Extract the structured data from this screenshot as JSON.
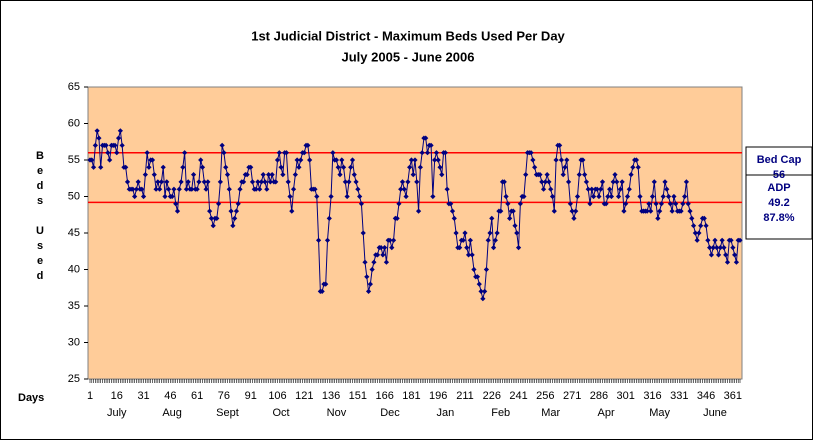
{
  "chart_data": {
    "type": "line",
    "title": "1st Judicial District - Maximum Beds Used Per Day",
    "subtitle": "July 2005 - June 2006",
    "ylabel": "Beds Used",
    "xlabel": "Days",
    "color": "#000080",
    "plot_background": "#ffcc99",
    "xlim": [
      1,
      365
    ],
    "ylim": [
      25,
      65
    ],
    "yticks": [
      25,
      30,
      35,
      40,
      45,
      50,
      55,
      60,
      65
    ],
    "xticks": [
      1,
      16,
      31,
      46,
      61,
      76,
      91,
      106,
      121,
      136,
      151,
      166,
      181,
      196,
      211,
      226,
      241,
      256,
      271,
      286,
      301,
      316,
      331,
      346,
      361
    ],
    "month_labels": [
      {
        "value": 16,
        "label": "July"
      },
      {
        "value": 47,
        "label": "Aug"
      },
      {
        "value": 78,
        "label": "Sept"
      },
      {
        "value": 108,
        "label": "Oct"
      },
      {
        "value": 139,
        "label": "Nov"
      },
      {
        "value": 169,
        "label": "Dec"
      },
      {
        "value": 200,
        "label": "Jan"
      },
      {
        "value": 231,
        "label": "Feb"
      },
      {
        "value": 259,
        "label": "Mar"
      },
      {
        "value": 290,
        "label": "Apr"
      },
      {
        "value": 320,
        "label": "May"
      },
      {
        "value": 351,
        "label": "June"
      }
    ],
    "reference_lines": [
      {
        "name": "Bed Cap",
        "value": 56,
        "color": "#ff0000"
      },
      {
        "name": "ADP",
        "value": 49.2,
        "note": "87.8%",
        "color": "#ff0000"
      }
    ],
    "x": [
      1,
      2,
      3,
      4,
      5,
      6,
      7,
      8,
      9,
      10,
      11,
      12,
      13,
      14,
      15,
      16,
      17,
      18,
      19,
      20,
      21,
      22,
      23,
      24,
      25,
      26,
      27,
      28,
      29,
      30,
      31,
      32,
      33,
      34,
      35,
      36,
      37,
      38,
      39,
      40,
      41,
      42,
      43,
      44,
      45,
      46,
      47,
      48,
      49,
      50,
      51,
      52,
      53,
      54,
      55,
      56,
      57,
      58,
      59,
      60,
      61,
      62,
      63,
      64,
      65,
      66,
      67,
      68,
      69,
      70,
      71,
      72,
      73,
      74,
      75,
      76,
      77,
      78,
      79,
      80,
      81,
      82,
      83,
      84,
      85,
      86,
      87,
      88,
      89,
      90,
      91,
      92,
      93,
      94,
      95,
      96,
      97,
      98,
      99,
      100,
      101,
      102,
      103,
      104,
      105,
      106,
      107,
      108,
      109,
      110,
      111,
      112,
      113,
      114,
      115,
      116,
      117,
      118,
      119,
      120,
      121,
      122,
      123,
      124,
      125,
      126,
      127,
      128,
      129,
      130,
      131,
      132,
      133,
      134,
      135,
      136,
      137,
      138,
      139,
      140,
      141,
      142,
      143,
      144,
      145,
      146,
      147,
      148,
      149,
      150,
      151,
      152,
      153,
      154,
      155,
      156,
      157,
      158,
      159,
      160,
      161,
      162,
      163,
      164,
      165,
      166,
      167,
      168,
      169,
      170,
      171,
      172,
      173,
      174,
      175,
      176,
      177,
      178,
      179,
      180,
      181,
      182,
      183,
      184,
      185,
      186,
      187,
      188,
      189,
      190,
      191,
      192,
      193,
      194,
      195,
      196,
      197,
      198,
      199,
      200,
      201,
      202,
      203,
      204,
      205,
      206,
      207,
      208,
      209,
      210,
      211,
      212,
      213,
      214,
      215,
      216,
      217,
      218,
      219,
      220,
      221,
      222,
      223,
      224,
      225,
      226,
      227,
      228,
      229,
      230,
      231,
      232,
      233,
      234,
      235,
      236,
      237,
      238,
      239,
      240,
      241,
      242,
      243,
      244,
      245,
      246,
      247,
      248,
      249,
      250,
      251,
      252,
      253,
      254,
      255,
      256,
      257,
      258,
      259,
      260,
      261,
      262,
      263,
      264,
      265,
      266,
      267,
      268,
      269,
      270,
      271,
      272,
      273,
      274,
      275,
      276,
      277,
      278,
      279,
      280,
      281,
      282,
      283,
      284,
      285,
      286,
      287,
      288,
      289,
      290,
      291,
      292,
      293,
      294,
      295,
      296,
      297,
      298,
      299,
      300,
      301,
      302,
      303,
      304,
      305,
      306,
      307,
      308,
      309,
      310,
      311,
      312,
      313,
      314,
      315,
      316,
      317,
      318,
      319,
      320,
      321,
      322,
      323,
      324,
      325,
      326,
      327,
      328,
      329,
      330,
      331,
      332,
      333,
      334,
      335,
      336,
      337,
      338,
      339,
      340,
      341,
      342,
      343,
      344,
      345,
      346,
      347,
      348,
      349,
      350,
      351,
      352,
      353,
      354,
      355,
      356,
      357,
      358,
      359,
      360,
      361,
      362,
      363,
      364,
      365
    ],
    "values": [
      55,
      55,
      54,
      57,
      59,
      58,
      54,
      57,
      57,
      57,
      56,
      55,
      57,
      57,
      57,
      56,
      58,
      59,
      57,
      54,
      54,
      52,
      51,
      51,
      51,
      50,
      51,
      52,
      51,
      51,
      50,
      53,
      56,
      54,
      55,
      55,
      53,
      51,
      52,
      51,
      52,
      54,
      50,
      52,
      51,
      50,
      50,
      51,
      49,
      48,
      51,
      52,
      54,
      56,
      51,
      52,
      51,
      51,
      53,
      51,
      51,
      52,
      55,
      54,
      52,
      51,
      52,
      48,
      47,
      46,
      47,
      47,
      49,
      52,
      57,
      56,
      54,
      53,
      51,
      48,
      46,
      47,
      48,
      49,
      51,
      52,
      52,
      53,
      53,
      54,
      54,
      52,
      51,
      51,
      52,
      51,
      52,
      53,
      52,
      51,
      53,
      52,
      53,
      52,
      52,
      55,
      56,
      54,
      53,
      56,
      56,
      52,
      50,
      48,
      51,
      53,
      55,
      54,
      55,
      56,
      56,
      57,
      57,
      55,
      51,
      51,
      51,
      50,
      44,
      37,
      37,
      38,
      38,
      44,
      47,
      50,
      56,
      55,
      55,
      54,
      53,
      55,
      54,
      52,
      50,
      52,
      54,
      55,
      53,
      52,
      51,
      50,
      49,
      45,
      41,
      39,
      37,
      38,
      40,
      41,
      42,
      42,
      43,
      43,
      42,
      43,
      41,
      44,
      44,
      43,
      44,
      47,
      47,
      49,
      51,
      52,
      51,
      50,
      52,
      54,
      55,
      53,
      55,
      52,
      48,
      54,
      56,
      58,
      58,
      56,
      57,
      57,
      50,
      55,
      56,
      55,
      54,
      53,
      56,
      56,
      51,
      49,
      49,
      48,
      47,
      45,
      43,
      43,
      44,
      44,
      45,
      43,
      42,
      44,
      42,
      40,
      39,
      39,
      38,
      37,
      36,
      37,
      40,
      44,
      45,
      47,
      43,
      44,
      45,
      48,
      48,
      52,
      52,
      50,
      49,
      47,
      48,
      48,
      46,
      45,
      43,
      49,
      50,
      50,
      53,
      56,
      56,
      56,
      55,
      54,
      53,
      53,
      53,
      52,
      51,
      52,
      53,
      52,
      51,
      50,
      48,
      55,
      57,
      57,
      55,
      53,
      54,
      55,
      52,
      49,
      48,
      47,
      48,
      50,
      53,
      55,
      55,
      53,
      52,
      51,
      49,
      51,
      50,
      51,
      51,
      50,
      51,
      52,
      49,
      49,
      50,
      51,
      50,
      52,
      53,
      52,
      50,
      51,
      52,
      48,
      49,
      50,
      51,
      53,
      54,
      55,
      55,
      54,
      50,
      48,
      48,
      48,
      48,
      49,
      48,
      50,
      52,
      49,
      47,
      48,
      49,
      50,
      52,
      51,
      50,
      49,
      48,
      50,
      49,
      48,
      48,
      48,
      49,
      50,
      52,
      49,
      48,
      47,
      46,
      45,
      44,
      45,
      46,
      47,
      47,
      46,
      44,
      43,
      42,
      43,
      44,
      43,
      42,
      43,
      44,
      43,
      42,
      41,
      44,
      44,
      43,
      42,
      41,
      44,
      44
    ]
  }
}
